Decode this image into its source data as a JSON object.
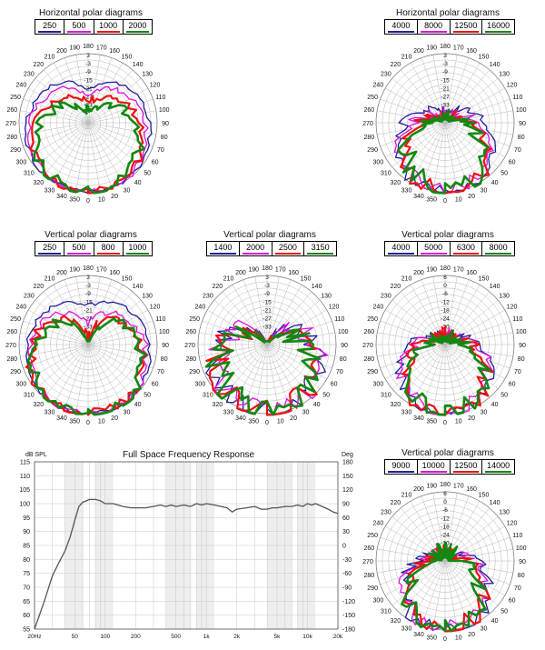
{
  "chart_data": [
    {
      "id": "hp1",
      "type": "polar",
      "title": "Horizontal polar diagrams",
      "series": [
        {
          "name": "250",
          "color": "#1f1f9a",
          "bw": 1.55,
          "dip": 0.12,
          "floor": 0.38,
          "noise": 0.01
        },
        {
          "name": "500",
          "color": "#e010e0",
          "bw": 1.35,
          "dip": 0.08,
          "floor": 0.3,
          "noise": 0.015
        },
        {
          "name": "1000",
          "color": "#ee1010",
          "bw": 1.15,
          "dip": 0.0,
          "floor": 0.22,
          "noise": 0.02
        },
        {
          "name": "2000",
          "color": "#118811",
          "bw": 1.0,
          "dip": 0.0,
          "floor": 0.18,
          "noise": 0.03
        }
      ],
      "angle_labels": [
        "0",
        "10",
        "20",
        "30",
        "40",
        "50",
        "60",
        "70",
        "80",
        "90",
        "100",
        "110",
        "120",
        "130",
        "140",
        "150",
        "160",
        "170",
        "180",
        "190",
        "200",
        "210",
        "220",
        "230",
        "240",
        "250",
        "260",
        "270",
        "280",
        "290",
        "300",
        "310",
        "320",
        "330",
        "340",
        "350"
      ],
      "db_labels": [
        "3",
        "-3",
        "-9",
        "-15",
        "-21",
        "-27",
        "-33"
      ]
    },
    {
      "id": "hp2",
      "type": "polar",
      "title": "Horizontal polar diagrams",
      "series": [
        {
          "name": "4000",
          "color": "#1f1f9a",
          "bw": 0.9,
          "dip": 0.0,
          "floor": 0.15,
          "noise": 0.03
        },
        {
          "name": "8000",
          "color": "#e010e0",
          "bw": 0.8,
          "dip": 0.0,
          "floor": 0.12,
          "noise": 0.04
        },
        {
          "name": "12500",
          "color": "#ee1010",
          "bw": 0.72,
          "dip": 0.0,
          "floor": 0.1,
          "noise": 0.05
        },
        {
          "name": "16000",
          "color": "#118811",
          "bw": 0.65,
          "dip": 0.0,
          "floor": 0.08,
          "noise": 0.06
        }
      ],
      "angle_labels": [
        "0",
        "10",
        "20",
        "30",
        "40",
        "50",
        "60",
        "70",
        "80",
        "90",
        "100",
        "110",
        "120",
        "130",
        "140",
        "150",
        "160",
        "170",
        "180",
        "190",
        "200",
        "210",
        "220",
        "230",
        "240",
        "250",
        "260",
        "270",
        "280",
        "290",
        "300",
        "310",
        "320",
        "330",
        "340",
        "350"
      ],
      "db_labels": [
        "3",
        "-3",
        "-9",
        "-15",
        "-21",
        "-27",
        "-33"
      ]
    },
    {
      "id": "vp1",
      "type": "polar",
      "title": "Vertical polar diagrams",
      "series": [
        {
          "name": "250",
          "color": "#1f1f9a",
          "bw": 1.5,
          "dip": 0.05,
          "floor": 0.4,
          "noise": 0.01
        },
        {
          "name": "500",
          "color": "#e010e0",
          "bw": 1.3,
          "dip": 0.15,
          "floor": 0.32,
          "noise": 0.02
        },
        {
          "name": "800",
          "color": "#ee1010",
          "bw": 1.2,
          "dip": 0.3,
          "floor": 0.28,
          "noise": 0.03
        },
        {
          "name": "1000",
          "color": "#118811",
          "bw": 1.1,
          "dip": 0.45,
          "floor": 0.25,
          "noise": 0.03
        }
      ],
      "angle_labels": [
        "0",
        "10",
        "20",
        "30",
        "40",
        "50",
        "60",
        "70",
        "80",
        "90",
        "100",
        "110",
        "120",
        "130",
        "140",
        "150",
        "160",
        "170",
        "180",
        "190",
        "200",
        "210",
        "220",
        "230",
        "240",
        "250",
        "260",
        "270",
        "280",
        "290",
        "300",
        "310",
        "320",
        "330",
        "340",
        "350"
      ],
      "db_labels": [
        "3",
        "-3",
        "-9",
        "-15",
        "-21",
        "-27",
        "-33"
      ]
    },
    {
      "id": "vp2",
      "type": "polar",
      "title": "Vertical polar diagrams",
      "series": [
        {
          "name": "1400",
          "color": "#1f1f9a",
          "bw": 1.0,
          "dip": 0.6,
          "floor": 0.2,
          "noise": 0.06
        },
        {
          "name": "2000",
          "color": "#e010e0",
          "bw": 0.95,
          "dip": 0.65,
          "floor": 0.18,
          "noise": 0.07
        },
        {
          "name": "2500",
          "color": "#ee1010",
          "bw": 0.9,
          "dip": 0.55,
          "floor": 0.16,
          "noise": 0.08
        },
        {
          "name": "3150",
          "color": "#118811",
          "bw": 0.85,
          "dip": 0.7,
          "floor": 0.14,
          "noise": 0.08
        }
      ],
      "angle_labels": [
        "0",
        "10",
        "20",
        "30",
        "40",
        "50",
        "60",
        "70",
        "80",
        "90",
        "100",
        "110",
        "120",
        "130",
        "140",
        "150",
        "160",
        "170",
        "180",
        "190",
        "200",
        "210",
        "220",
        "230",
        "240",
        "250",
        "260",
        "270",
        "280",
        "290",
        "300",
        "310",
        "320",
        "330",
        "340",
        "350"
      ],
      "db_labels": [
        "3",
        "-3",
        "-9",
        "-15",
        "-21",
        "-27",
        "-33"
      ]
    },
    {
      "id": "vp3",
      "type": "polar",
      "title": "Vertical polar diagrams",
      "series": [
        {
          "name": "4000",
          "color": "#1f1f9a",
          "bw": 0.8,
          "dip": 0.0,
          "floor": 0.15,
          "noise": 0.03
        },
        {
          "name": "5000",
          "color": "#e010e0",
          "bw": 0.75,
          "dip": 0.0,
          "floor": 0.13,
          "noise": 0.04
        },
        {
          "name": "6300",
          "color": "#ee1010",
          "bw": 0.7,
          "dip": 0.0,
          "floor": 0.11,
          "noise": 0.05
        },
        {
          "name": "8000",
          "color": "#118811",
          "bw": 0.65,
          "dip": 0.0,
          "floor": 0.1,
          "noise": 0.05
        }
      ],
      "angle_labels": [
        "0",
        "10",
        "20",
        "30",
        "40",
        "50",
        "60",
        "70",
        "80",
        "90",
        "100",
        "110",
        "120",
        "130",
        "140",
        "150",
        "160",
        "170",
        "180",
        "190",
        "200",
        "210",
        "220",
        "230",
        "240",
        "250",
        "260",
        "270",
        "280",
        "290",
        "300",
        "310",
        "320",
        "330",
        "340",
        "350"
      ],
      "db_labels": [
        "6",
        "0",
        "-6",
        "-12",
        "-18",
        "-24",
        "-30"
      ]
    },
    {
      "id": "vp4",
      "type": "polar",
      "title": "Vertical polar diagrams",
      "series": [
        {
          "name": "9000",
          "color": "#1f1f9a",
          "bw": 0.75,
          "dip": 0.0,
          "floor": 0.12,
          "noise": 0.04
        },
        {
          "name": "10000",
          "color": "#e010e0",
          "bw": 0.7,
          "dip": 0.0,
          "floor": 0.11,
          "noise": 0.05
        },
        {
          "name": "12500",
          "color": "#ee1010",
          "bw": 0.65,
          "dip": 0.0,
          "floor": 0.1,
          "noise": 0.05
        },
        {
          "name": "14000",
          "color": "#118811",
          "bw": 0.6,
          "dip": 0.0,
          "floor": 0.09,
          "noise": 0.06
        }
      ],
      "angle_labels": [
        "0",
        "10",
        "20",
        "30",
        "40",
        "50",
        "60",
        "70",
        "80",
        "90",
        "100",
        "110",
        "120",
        "130",
        "140",
        "150",
        "160",
        "170",
        "180",
        "190",
        "200",
        "210",
        "220",
        "230",
        "240",
        "250",
        "260",
        "270",
        "280",
        "290",
        "300",
        "310",
        "320",
        "330",
        "340",
        "350"
      ],
      "db_labels": [
        "6",
        "0",
        "-6",
        "-12",
        "-18",
        "-24",
        "-30"
      ]
    },
    {
      "id": "fr",
      "type": "line",
      "title": "Full Space Frequency Response",
      "ylabel": "dB SPL",
      "y2label": "Deg",
      "ylim": [
        55,
        115
      ],
      "y2lim": [
        -180,
        180
      ],
      "xlim": [
        20,
        20000
      ],
      "xscale": "log",
      "y_ticks": [
        "115",
        "110",
        "105",
        "100",
        "95",
        "90",
        "85",
        "80",
        "75",
        "70",
        "65",
        "60",
        "55"
      ],
      "y2_ticks": [
        "180",
        "150",
        "120",
        "90",
        "60",
        "30",
        "0",
        "-30",
        "-60",
        "-90",
        "-120",
        "-150",
        "-180"
      ],
      "x_ticks": [
        {
          "v": 20,
          "label": "20Hz"
        },
        {
          "v": 50,
          "label": "50"
        },
        {
          "v": 100,
          "label": "100"
        },
        {
          "v": 200,
          "label": "200"
        },
        {
          "v": 500,
          "label": "500"
        },
        {
          "v": 1000,
          "label": "1k"
        },
        {
          "v": 2000,
          "label": "2k"
        },
        {
          "v": 5000,
          "label": "5k"
        },
        {
          "v": 10000,
          "label": "10k"
        },
        {
          "v": 20000,
          "label": "20k"
        }
      ],
      "series": [
        {
          "name": "response",
          "color": "#555555",
          "x": [
            20,
            25,
            30,
            35,
            40,
            45,
            50,
            55,
            60,
            65,
            70,
            80,
            90,
            100,
            120,
            150,
            180,
            200,
            250,
            300,
            350,
            400,
            450,
            500,
            600,
            700,
            800,
            900,
            1000,
            1200,
            1400,
            1600,
            1800,
            2000,
            2500,
            3000,
            3500,
            4000,
            4500,
            5000,
            6000,
            7000,
            8000,
            9000,
            10000,
            11000,
            12000,
            14000,
            16000,
            18000,
            20000
          ],
          "y": [
            55,
            65,
            74,
            79,
            83,
            88,
            94,
            99,
            100.5,
            101,
            101.5,
            101.5,
            101,
            100,
            100,
            99,
            98.5,
            98.5,
            98.5,
            99,
            99.5,
            99,
            99.5,
            99,
            99.5,
            99,
            100,
            99.5,
            100,
            99.5,
            99,
            98.5,
            97,
            98,
            98.5,
            99,
            98,
            98,
            98.5,
            98.5,
            99,
            99,
            99.5,
            99,
            100,
            99.5,
            100,
            99,
            98,
            97,
            96.5
          ]
        }
      ]
    }
  ]
}
